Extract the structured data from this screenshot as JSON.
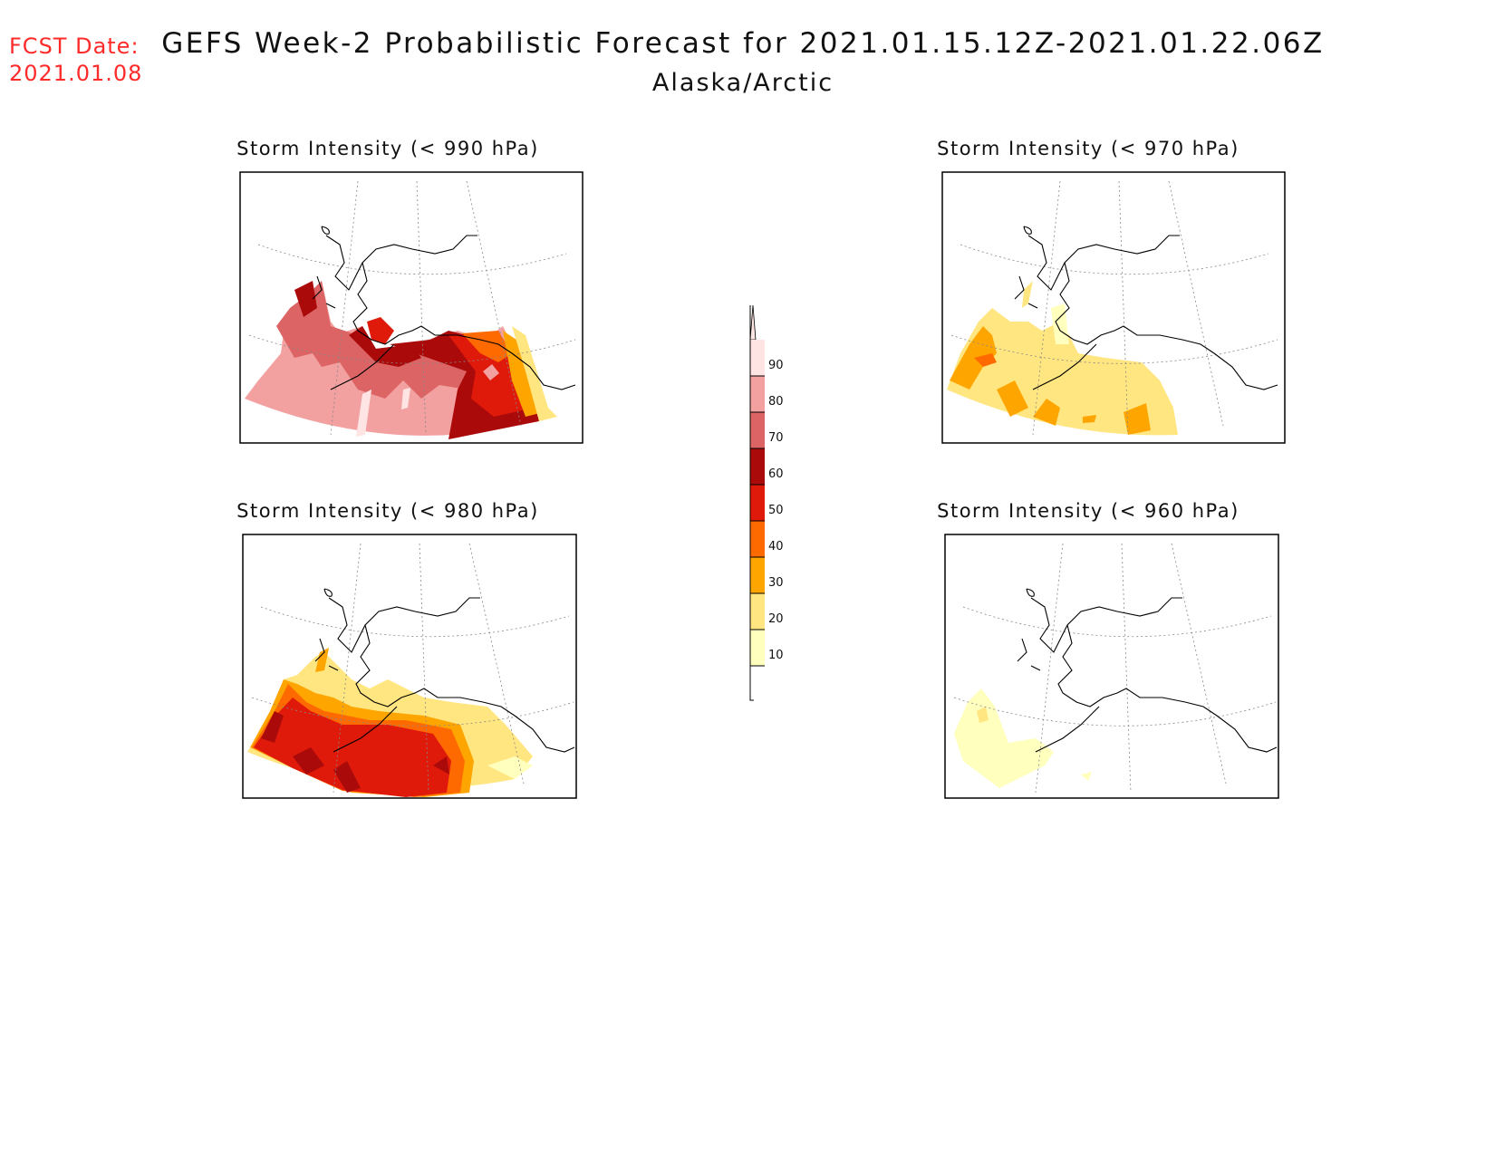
{
  "fcst": {
    "label": "FCST Date:",
    "date": "2021.01.08"
  },
  "title": "GEFS Week-2 Probabilistic Forecast for 2021.01.15.12Z-2021.01.22.06Z",
  "subtitle": "Alaska/Arctic",
  "panels": [
    {
      "title": "Storm Intensity (< 990 hPa)"
    },
    {
      "title": "Storm Intensity (< 970 hPa)"
    },
    {
      "title": "Storm Intensity (< 980 hPa)"
    },
    {
      "title": "Storm Intensity (< 960 hPa)"
    }
  ],
  "colorbar": {
    "labels": [
      "90",
      "80",
      "70",
      "60",
      "50",
      "40",
      "30",
      "20",
      "10"
    ],
    "colors": [
      "#ffe4e4",
      "#f2a0a0",
      "#dc6464",
      "#aa0a0a",
      "#e01a0a",
      "#ff6a00",
      "#ffa500",
      "#ffe680",
      "#ffffbe"
    ]
  }
}
